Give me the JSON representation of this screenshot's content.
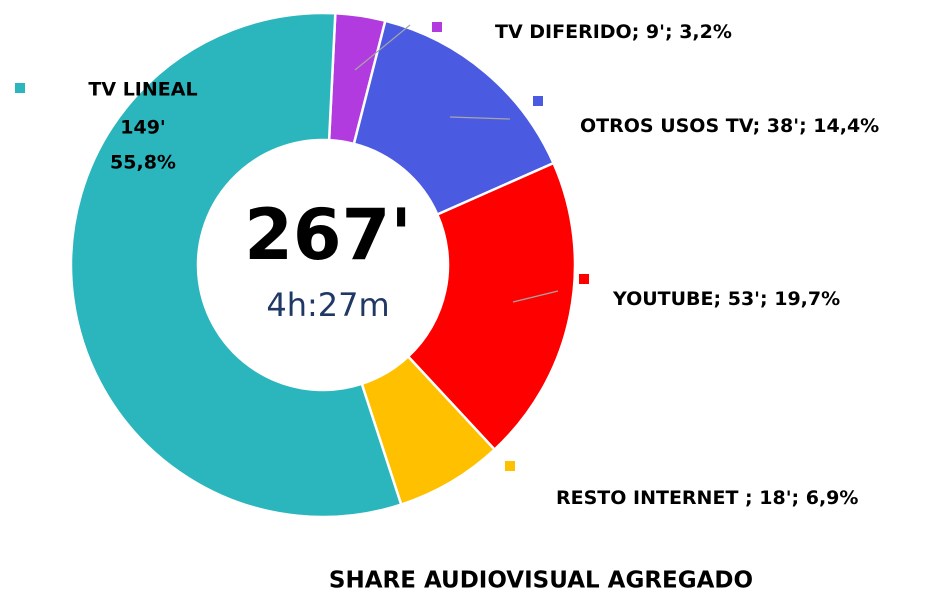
{
  "chart_data": {
    "type": "donut",
    "title": "SHARE AUDIOVISUAL AGREGADO",
    "center_value": "267'",
    "center_subtitle": "4h:27m",
    "categories": [
      "TV DIFERIDO",
      "OTROS USOS TV",
      "YOUTUBE",
      "RESTO INTERNET ",
      "TV LINEAL"
    ],
    "values": [
      3.2,
      14.4,
      19.7,
      6.9,
      55.8
    ],
    "value_labels": [
      "3,2%",
      "14,4%",
      "19,7%",
      "6,9%",
      "55,8%"
    ],
    "minute_labels": [
      "9'",
      "38'",
      "53'",
      "18'",
      "149'"
    ],
    "label_separator": "; ",
    "colors": [
      "#b23be0",
      "#4a5be2",
      "#ff0000",
      "#ffc000",
      "#2bb5bd"
    ]
  }
}
